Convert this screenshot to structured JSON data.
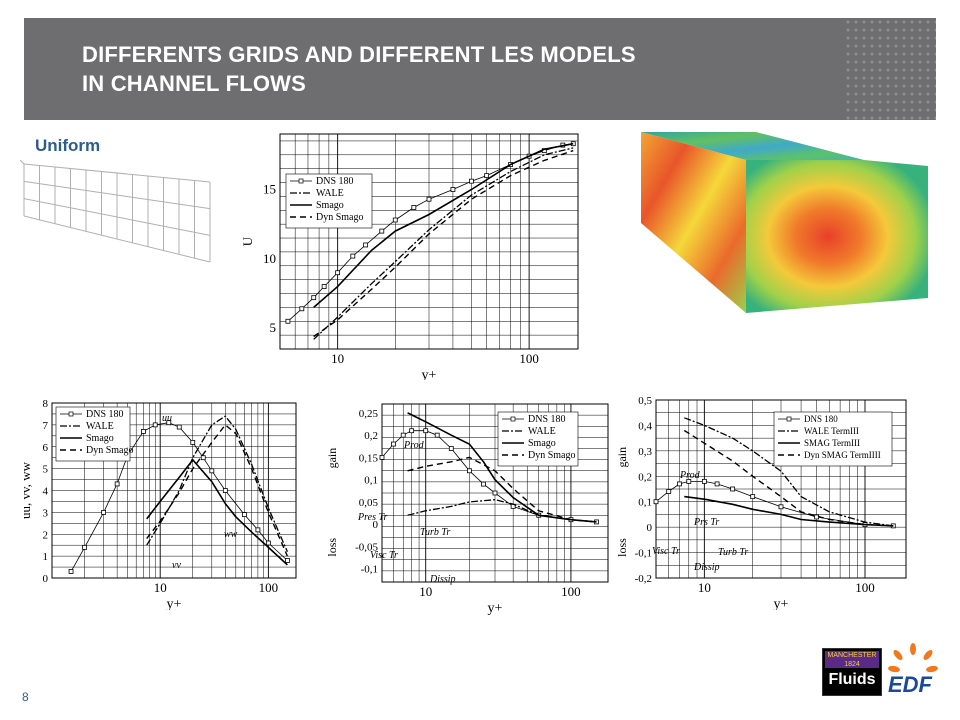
{
  "slide": {
    "title_line1": "DIFFERENTS GRIDS AND DIFFERENT LES MODELS",
    "title_line2": "IN CHANNEL FLOWS",
    "subtitle": "Uniform",
    "page_number": "8",
    "accent_color": "#2c5d8f",
    "banner_color": "#6e6e70"
  },
  "logos": {
    "manchester_top": "MANCHESTER 1824",
    "manchester_bottom": "Fluids",
    "edf": "EDF"
  },
  "chart_data": [
    {
      "type": "line",
      "xscale": "log",
      "xlabel": "y+",
      "ylabel": "U",
      "xlim": [
        5,
        180
      ],
      "ylim": [
        3.5,
        19
      ],
      "x_ticks": [
        "10",
        "100"
      ],
      "y_ticks": [
        "5",
        "10",
        "15"
      ],
      "legend_position": "top-left",
      "series": [
        {
          "name": "DNS 180",
          "x": [
            5.5,
            6.5,
            7.5,
            8.5,
            10,
            12,
            14,
            17,
            20,
            25,
            30,
            40,
            50,
            60,
            80,
            100,
            120,
            150,
            170
          ],
          "y": [
            5.5,
            6.4,
            7.2,
            8.0,
            9.0,
            10.2,
            11.0,
            12.0,
            12.8,
            13.7,
            14.3,
            15.0,
            15.6,
            16.0,
            16.8,
            17.4,
            17.8,
            18.2,
            18.3
          ]
        },
        {
          "name": "WALE",
          "x": [
            7.5,
            10,
            15,
            20,
            30,
            50,
            80,
            120,
            170
          ],
          "y": [
            4.2,
            5.8,
            8.2,
            9.8,
            12.1,
            14.6,
            16.3,
            17.5,
            18.0
          ]
        },
        {
          "name": "Smago",
          "x": [
            7.5,
            10,
            15,
            20,
            30,
            50,
            80,
            120,
            170
          ],
          "y": [
            6.5,
            8.0,
            10.6,
            12.0,
            13.2,
            15.0,
            16.8,
            17.9,
            18.3
          ]
        },
        {
          "name": "Dyn Smago",
          "x": [
            7.5,
            10,
            15,
            20,
            30,
            50,
            80,
            120,
            170
          ],
          "y": [
            4.4,
            5.6,
            7.8,
            9.4,
            11.8,
            14.3,
            16.0,
            17.1,
            17.8
          ]
        }
      ]
    },
    {
      "type": "line",
      "xscale": "log",
      "xlabel": "y+",
      "ylabel": "uu, vv, ww",
      "xlim": [
        1,
        180
      ],
      "ylim": [
        0,
        8
      ],
      "x_ticks": [
        "10",
        "100"
      ],
      "y_ticks": [
        "0",
        "1",
        "2",
        "3",
        "4",
        "5",
        "6",
        "7",
        "8"
      ],
      "legend_position": "top-left",
      "annotations": [
        "uu",
        "ww",
        "vv"
      ],
      "series": [
        {
          "name": "DNS 180",
          "x": [
            1.5,
            2,
            3,
            4,
            5,
            7,
            9,
            12,
            15,
            20,
            25,
            30,
            40,
            60,
            80,
            100,
            150
          ],
          "y": [
            0.3,
            1.4,
            3.0,
            4.3,
            5.6,
            6.7,
            7.0,
            7.1,
            6.9,
            6.2,
            5.5,
            4.9,
            4.0,
            2.9,
            2.2,
            1.6,
            0.8
          ]
        },
        {
          "name": "WALE",
          "x": [
            7.5,
            10,
            15,
            20,
            30,
            40,
            50,
            70,
            100,
            150
          ],
          "y": [
            1.5,
            2.5,
            4.0,
            5.5,
            7.0,
            7.4,
            6.8,
            5.2,
            3.2,
            1.2
          ]
        },
        {
          "name": "Smago",
          "x": [
            7.5,
            10,
            15,
            20,
            30,
            40,
            50,
            70,
            100,
            150
          ],
          "y": [
            2.7,
            3.5,
            4.6,
            5.4,
            4.4,
            3.4,
            2.8,
            2.1,
            1.4,
            0.6
          ]
        },
        {
          "name": "Dyn Smago",
          "x": [
            7.5,
            10,
            15,
            20,
            30,
            40,
            50,
            70,
            100,
            150
          ],
          "y": [
            1.8,
            2.6,
            3.9,
            5.0,
            6.2,
            7.0,
            6.6,
            5.0,
            3.0,
            1.0
          ]
        }
      ]
    },
    {
      "type": "line",
      "xscale": "log",
      "xlabel": "y+",
      "ylabel_top": "gain",
      "ylabel_bottom": "loss",
      "xlim": [
        5,
        180
      ],
      "ylim": [
        -0.13,
        0.27
      ],
      "x_ticks": [
        "10",
        "100"
      ],
      "y_ticks": [
        "-0,1",
        "-0,05",
        "0",
        "0,05",
        "0,1",
        "0,15",
        "0,2",
        "0,25"
      ],
      "legend_position": "top-right",
      "annotations": [
        "Prod",
        "Pres Tr",
        "Visc Tr",
        "Turb Tr",
        "Dissip"
      ],
      "series": [
        {
          "name": "DNS 180",
          "x": [
            5,
            6,
            7,
            8,
            10,
            12,
            15,
            20,
            25,
            30,
            40,
            60,
            100,
            150
          ],
          "y": [
            0.15,
            0.18,
            0.2,
            0.21,
            0.21,
            0.2,
            0.17,
            0.12,
            0.09,
            0.07,
            0.04,
            0.02,
            0.01,
            0.005
          ]
        },
        {
          "name": "WALE",
          "x": [
            7.5,
            10,
            15,
            20,
            30,
            40,
            60,
            100,
            150
          ],
          "y": [
            0.02,
            0.03,
            0.04,
            0.05,
            0.055,
            0.045,
            0.02,
            0.01,
            0.005
          ]
        },
        {
          "name": "Smago",
          "x": [
            7.5,
            10,
            15,
            20,
            25,
            30,
            40,
            60,
            100,
            150
          ],
          "y": [
            0.25,
            0.23,
            0.2,
            0.18,
            0.14,
            0.1,
            0.06,
            0.02,
            0.01,
            0.005
          ]
        },
        {
          "name": "Dyn Smago",
          "x": [
            7.5,
            10,
            15,
            20,
            30,
            40,
            60,
            100,
            150
          ],
          "y": [
            0.12,
            0.13,
            0.14,
            0.15,
            0.12,
            0.08,
            0.03,
            0.01,
            0.005
          ]
        }
      ]
    },
    {
      "type": "line",
      "xscale": "log",
      "xlabel": "y+",
      "ylabel_top": "gain",
      "ylabel_bottom": "loss",
      "xlim": [
        5,
        180
      ],
      "ylim": [
        -0.2,
        0.5
      ],
      "x_ticks": [
        "10",
        "100"
      ],
      "y_ticks": [
        "-0,2",
        "-0,1",
        "0",
        "0,1",
        "0,2",
        "0,3",
        "0,4",
        "0,5"
      ],
      "legend_position": "top-right",
      "annotations": [
        "Prod",
        "Prs Tr",
        "Visc Tr",
        "Turb Tr",
        "Dissip"
      ],
      "series": [
        {
          "name": "DNS 180",
          "x": [
            5,
            6,
            7,
            8,
            10,
            12,
            15,
            20,
            30,
            50,
            100,
            150
          ],
          "y": [
            0.1,
            0.14,
            0.17,
            0.18,
            0.18,
            0.17,
            0.15,
            0.12,
            0.08,
            0.04,
            0.01,
            0.005
          ]
        },
        {
          "name": "WALE TermIII",
          "x": [
            7.5,
            10,
            15,
            20,
            30,
            40,
            60,
            100,
            150
          ],
          "y": [
            0.43,
            0.4,
            0.35,
            0.3,
            0.22,
            0.12,
            0.06,
            0.02,
            0.005
          ]
        },
        {
          "name": "SMAG TermIII",
          "x": [
            7.5,
            10,
            15,
            20,
            30,
            40,
            60,
            100,
            150
          ],
          "y": [
            0.12,
            0.11,
            0.09,
            0.07,
            0.05,
            0.03,
            0.02,
            0.01,
            0.005
          ]
        },
        {
          "name": "Dyn SMAG TermIIII",
          "x": [
            7.5,
            10,
            15,
            20,
            30,
            40,
            60,
            100,
            150
          ],
          "y": [
            0.38,
            0.33,
            0.26,
            0.2,
            0.12,
            0.06,
            0.03,
            0.01,
            0.005
          ]
        }
      ]
    }
  ]
}
